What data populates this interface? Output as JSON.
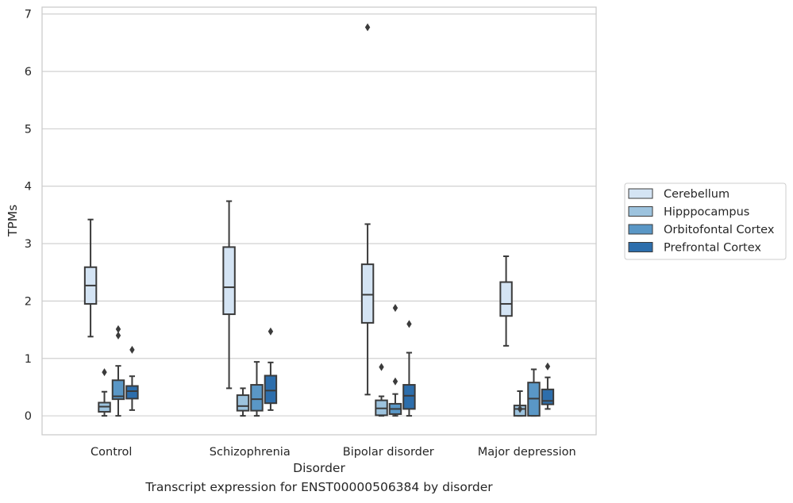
{
  "caption": "Transcript expression for ENST00000506384 by disorder",
  "chart_data": {
    "type": "box",
    "xlabel": "Disorder",
    "ylabel": "TPMs",
    "ylim": [
      -0.33,
      7.12
    ],
    "yticks": [
      0,
      1,
      2,
      3,
      4,
      5,
      6,
      7
    ],
    "grid": true,
    "legend_position": "right",
    "categories": [
      "Control",
      "Schizophrenia",
      "Bipolar disorder",
      "Major depression"
    ],
    "series": [
      {
        "name": "Cerebellum",
        "color": "#d4e4f4",
        "boxes": [
          {
            "whisker_low": 1.38,
            "q1": 1.95,
            "median": 2.27,
            "q3": 2.59,
            "whisker_high": 3.42,
            "outliers": []
          },
          {
            "whisker_low": 0.48,
            "q1": 1.77,
            "median": 2.24,
            "q3": 2.94,
            "whisker_high": 3.74,
            "outliers": []
          },
          {
            "whisker_low": 0.37,
            "q1": 1.62,
            "median": 2.11,
            "q3": 2.64,
            "whisker_high": 3.34,
            "outliers": [
              6.77
            ]
          },
          {
            "whisker_low": 1.22,
            "q1": 1.74,
            "median": 1.95,
            "q3": 2.33,
            "whisker_high": 2.78,
            "outliers": []
          }
        ]
      },
      {
        "name": "Hipppocampus",
        "color": "#9dc3de",
        "boxes": [
          {
            "whisker_low": 0.0,
            "q1": 0.07,
            "median": 0.16,
            "q3": 0.23,
            "whisker_high": 0.42,
            "outliers": [
              0.76
            ]
          },
          {
            "whisker_low": 0.0,
            "q1": 0.09,
            "median": 0.17,
            "q3": 0.36,
            "whisker_high": 0.48,
            "outliers": []
          },
          {
            "whisker_low": 0.0,
            "q1": 0.01,
            "median": 0.13,
            "q3": 0.27,
            "whisker_high": 0.34,
            "outliers": [
              0.85
            ]
          },
          {
            "whisker_low": 0.0,
            "q1": 0.0,
            "median": 0.12,
            "q3": 0.18,
            "whisker_high": 0.43,
            "outliers": [
              0.12
            ]
          }
        ]
      },
      {
        "name": "Orbitofontal Cortex",
        "color": "#5a97c6",
        "boxes": [
          {
            "whisker_low": 0.0,
            "q1": 0.29,
            "median": 0.34,
            "q3": 0.62,
            "whisker_high": 0.87,
            "outliers": [
              1.4,
              1.51
            ]
          },
          {
            "whisker_low": 0.0,
            "q1": 0.09,
            "median": 0.29,
            "q3": 0.54,
            "whisker_high": 0.94,
            "outliers": []
          },
          {
            "whisker_low": 0.0,
            "q1": 0.03,
            "median": 0.12,
            "q3": 0.21,
            "whisker_high": 0.38,
            "outliers": [
              0.6,
              1.88
            ]
          },
          {
            "whisker_low": 0.0,
            "q1": 0.0,
            "median": 0.3,
            "q3": 0.58,
            "whisker_high": 0.81,
            "outliers": []
          }
        ]
      },
      {
        "name": "Prefrontal Cortex",
        "color": "#2d6eac",
        "boxes": [
          {
            "whisker_low": 0.1,
            "q1": 0.3,
            "median": 0.43,
            "q3": 0.52,
            "whisker_high": 0.69,
            "outliers": [
              1.15
            ]
          },
          {
            "whisker_low": 0.1,
            "q1": 0.22,
            "median": 0.44,
            "q3": 0.7,
            "whisker_high": 0.93,
            "outliers": [
              1.47
            ]
          },
          {
            "whisker_low": 0.0,
            "q1": 0.12,
            "median": 0.35,
            "q3": 0.54,
            "whisker_high": 1.1,
            "outliers": [
              1.6
            ]
          },
          {
            "whisker_low": 0.12,
            "q1": 0.2,
            "median": 0.26,
            "q3": 0.46,
            "whisker_high": 0.67,
            "outliers": [
              0.86
            ]
          }
        ]
      }
    ]
  }
}
